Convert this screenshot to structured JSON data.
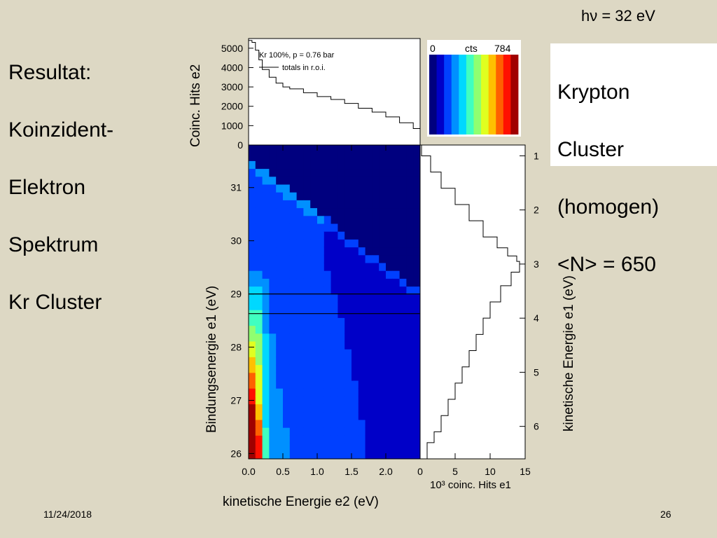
{
  "slide": {
    "title_lines": [
      "Resultat:",
      "Koinzident-",
      "Elektron",
      "Spektrum",
      "Kr Cluster"
    ],
    "photon_energy": "hν = 32 eV",
    "sample_lines": [
      "Krypton",
      "Cluster",
      "(homogen)",
      "<N> = 650"
    ],
    "date": "11/24/2018",
    "page": "26"
  },
  "colors": {
    "background": "#ddd8c4",
    "map_low": "#0a0a8a",
    "map_high": "#8b0000",
    "colormap": [
      "#00007f",
      "#0000c8",
      "#0040ff",
      "#0090ff",
      "#00d8ff",
      "#40ffc0",
      "#90ff70",
      "#e0ff20",
      "#ffc000",
      "#ff6000",
      "#ff1000",
      "#a00000"
    ]
  },
  "chart_data": [
    {
      "type": "line",
      "ylabel": "Coinc. Hits e2",
      "xlim": [
        0,
        2.5
      ],
      "ylim": [
        0,
        5500
      ],
      "yticks": [
        "0",
        "1000",
        "2000",
        "3000",
        "4000",
        "5000"
      ],
      "yticks_values": [
        0,
        1000,
        2000,
        3000,
        4000,
        5000
      ],
      "legend_lines": [
        "Kr 100%, p = 0.76 bar",
        "totals in r.o.i."
      ],
      "series": [
        {
          "x": [
            0.0,
            0.05,
            0.1,
            0.15,
            0.2,
            0.3,
            0.4,
            0.5,
            0.6,
            0.8,
            1.0,
            1.2,
            1.4,
            1.6,
            1.8,
            2.0,
            2.2,
            2.4,
            2.5
          ],
          "values": [
            5400,
            5300,
            4900,
            4400,
            3900,
            3500,
            3200,
            3000,
            2900,
            2700,
            2500,
            2350,
            2150,
            1900,
            1700,
            1450,
            1150,
            850,
            700
          ]
        }
      ]
    },
    {
      "type": "heatmap",
      "xlabel": "kinetische Energie e2 (eV)",
      "ylabel": "Bindungsenergie e1 (eV)",
      "xlim": [
        0,
        2.5
      ],
      "ylim": [
        25.9,
        31.8
      ],
      "xticks": [
        "0.0",
        "0.5",
        "1.0",
        "1.5",
        "2.0"
      ],
      "xticks_values": [
        0.0,
        0.5,
        1.0,
        1.5,
        2.0
      ],
      "yticks": [
        "26",
        "27",
        "28",
        "29",
        "30",
        "31"
      ],
      "yticks_values": [
        26,
        27,
        28,
        29,
        30,
        31
      ],
      "roi_lines_e1": [
        29.0,
        28.63
      ],
      "colorbar": {
        "min": 0,
        "max": 784,
        "min_label": "0",
        "max_label": "784",
        "label": "cts"
      }
    },
    {
      "type": "line",
      "xlabel": "10³ coinc. Hits e1",
      "ylabel": "kinetische Energie e1 (eV)",
      "xlim": [
        0,
        15
      ],
      "ylim": [
        0.8,
        6.6
      ],
      "xticks": [
        "0",
        "5",
        "10",
        "15"
      ],
      "xticks_values": [
        0,
        5,
        10,
        15
      ],
      "yticks": [
        "1",
        "2",
        "3",
        "4",
        "5",
        "6"
      ],
      "yticks_values": [
        1,
        2,
        3,
        4,
        5,
        6
      ],
      "series": [
        {
          "x": [
            0.2,
            1.5,
            3.0,
            5.0,
            7.0,
            9.0,
            11.0,
            12.5,
            13.8,
            14.2,
            13.0,
            11.5,
            10.0,
            9.0,
            8.0,
            7.0,
            6.0,
            5.0,
            4.0,
            3.0,
            2.0,
            1.0,
            0.5
          ],
          "y": [
            0.8,
            1.0,
            1.3,
            1.6,
            1.9,
            2.2,
            2.5,
            2.7,
            2.85,
            2.95,
            3.15,
            3.4,
            3.7,
            4.0,
            4.3,
            4.6,
            4.9,
            5.2,
            5.5,
            5.8,
            6.1,
            6.3,
            6.6
          ]
        }
      ]
    }
  ]
}
